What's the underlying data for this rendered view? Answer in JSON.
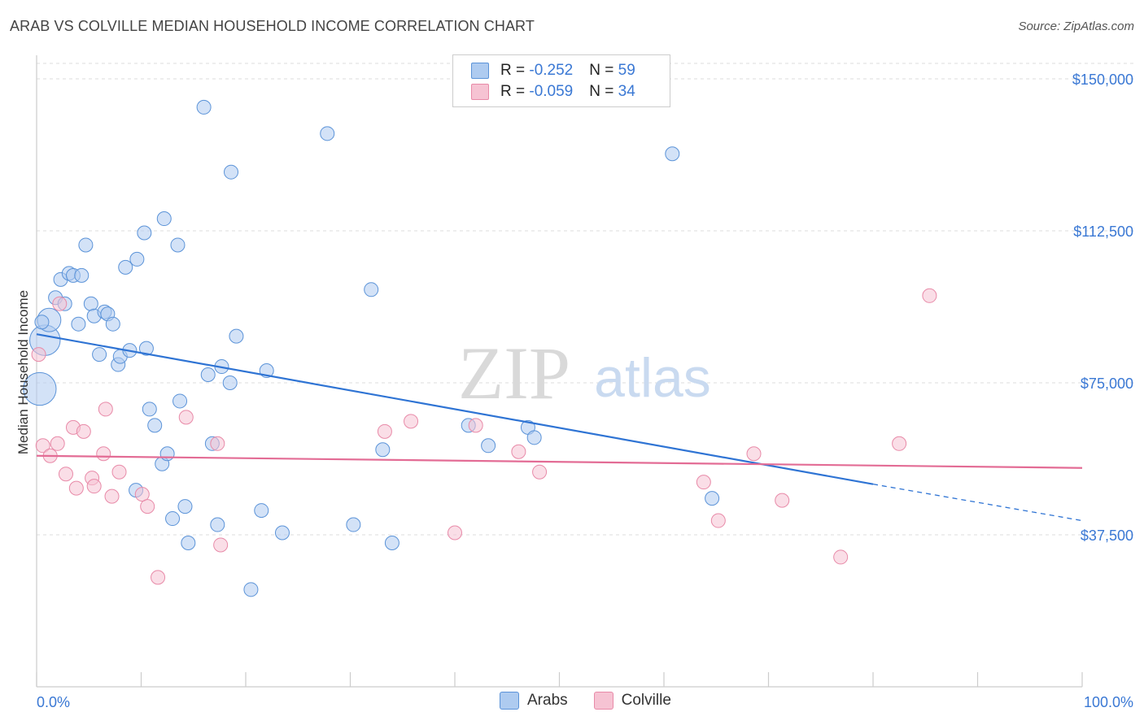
{
  "title": "ARAB VS COLVILLE MEDIAN HOUSEHOLD INCOME CORRELATION CHART",
  "source": "Source: ZipAtlas.com",
  "watermark": {
    "zip": "ZIP",
    "atlas": "atlas"
  },
  "colors": {
    "arabs_fill": "#aecbf0",
    "arabs_stroke": "#5b93d8",
    "arabs_line": "#2f74d4",
    "colville_fill": "#f6c3d3",
    "colville_stroke": "#e88aa8",
    "colville_line": "#e36c95",
    "tick_text": "#3a78d4",
    "grid": "#dddddd"
  },
  "legend": {
    "rows": [
      {
        "r_label": "R = ",
        "r_value": "-0.252",
        "n_label": "N = ",
        "n_value": "59"
      },
      {
        "r_label": "R = ",
        "r_value": "-0.059",
        "n_label": "N = ",
        "n_value": "34"
      }
    ]
  },
  "bottom_legend": {
    "arabs": "Arabs",
    "colville": "Colville"
  },
  "chart_data": {
    "type": "scatter",
    "xlabel": "",
    "ylabel": "Median Household Income",
    "xlim": [
      0,
      100
    ],
    "ylim": [
      0,
      155000
    ],
    "y_ticks": [
      {
        "value": 37500,
        "label": "$37,500"
      },
      {
        "value": 75000,
        "label": "$75,000"
      },
      {
        "value": 112500,
        "label": "$112,500"
      },
      {
        "value": 150000,
        "label": "$150,000"
      }
    ],
    "x_tick_labels": [
      {
        "value": 0,
        "label": "0.0%"
      },
      {
        "value": 100,
        "label": "100.0%"
      }
    ],
    "grid": true,
    "series": [
      {
        "name": "Arabs",
        "points": [
          [
            0.3,
            73500,
            28
          ],
          [
            0.8,
            85500,
            26
          ],
          [
            1.2,
            90500,
            20
          ],
          [
            1.8,
            96000,
            11
          ],
          [
            2.3,
            100500,
            11
          ],
          [
            2.7,
            94500,
            11
          ],
          [
            3.1,
            102000,
            11
          ],
          [
            3.5,
            101500,
            11
          ],
          [
            4.3,
            101500,
            11
          ],
          [
            4.0,
            89500,
            11
          ],
          [
            4.7,
            109000,
            11
          ],
          [
            5.2,
            94500,
            11
          ],
          [
            5.5,
            91500,
            11
          ],
          [
            6.0,
            82000,
            11
          ],
          [
            6.5,
            92500,
            11
          ],
          [
            6.8,
            92000,
            11
          ],
          [
            7.3,
            89500,
            11
          ],
          [
            7.8,
            79500,
            11
          ],
          [
            8.0,
            81500,
            11
          ],
          [
            8.5,
            103500,
            11
          ],
          [
            8.9,
            83000,
            11
          ],
          [
            9.6,
            105500,
            11
          ],
          [
            10.3,
            112000,
            11
          ],
          [
            10.5,
            83500,
            11
          ],
          [
            10.8,
            68500,
            11
          ],
          [
            11.3,
            64500,
            11
          ],
          [
            12.0,
            55000,
            11
          ],
          [
            12.2,
            115500,
            11
          ],
          [
            12.5,
            57500,
            11
          ],
          [
            13.0,
            41500,
            11
          ],
          [
            13.5,
            109000,
            11
          ],
          [
            13.7,
            70500,
            11
          ],
          [
            14.2,
            44500,
            11
          ],
          [
            14.5,
            35500,
            11
          ],
          [
            9.5,
            48500,
            11
          ],
          [
            16.0,
            143000,
            11
          ],
          [
            16.4,
            77000,
            11
          ],
          [
            16.8,
            60000,
            11
          ],
          [
            17.3,
            40000,
            11
          ],
          [
            17.7,
            79000,
            11
          ],
          [
            18.6,
            127000,
            11
          ],
          [
            18.5,
            75000,
            11
          ],
          [
            19.1,
            86500,
            11
          ],
          [
            20.5,
            24000,
            11
          ],
          [
            21.5,
            43500,
            11
          ],
          [
            22.0,
            78000,
            11
          ],
          [
            23.5,
            38000,
            11
          ],
          [
            27.8,
            136500,
            11
          ],
          [
            30.3,
            40000,
            11
          ],
          [
            32.0,
            98000,
            11
          ],
          [
            33.1,
            58500,
            11
          ],
          [
            34.0,
            35500,
            11
          ],
          [
            41.3,
            64500,
            11
          ],
          [
            43.2,
            59500,
            11
          ],
          [
            47.0,
            64000,
            11
          ],
          [
            47.6,
            61500,
            11
          ],
          [
            60.8,
            131500,
            11
          ],
          [
            64.6,
            46500,
            11
          ],
          [
            0.5,
            90000,
            11
          ]
        ]
      },
      {
        "name": "Colville",
        "points": [
          [
            0.2,
            82000,
            11
          ],
          [
            0.6,
            59500,
            11
          ],
          [
            1.3,
            57000,
            11
          ],
          [
            2.0,
            60000,
            11
          ],
          [
            2.2,
            94500,
            11
          ],
          [
            2.8,
            52500,
            11
          ],
          [
            3.5,
            64000,
            11
          ],
          [
            3.8,
            49000,
            11
          ],
          [
            4.5,
            63000,
            11
          ],
          [
            5.3,
            51500,
            11
          ],
          [
            5.5,
            49500,
            11
          ],
          [
            6.4,
            57500,
            11
          ],
          [
            6.6,
            68500,
            11
          ],
          [
            7.2,
            47000,
            11
          ],
          [
            7.9,
            53000,
            11
          ],
          [
            10.1,
            47500,
            11
          ],
          [
            10.6,
            44500,
            11
          ],
          [
            11.6,
            27000,
            11
          ],
          [
            14.3,
            66500,
            11
          ],
          [
            17.3,
            60000,
            11
          ],
          [
            17.6,
            35000,
            11
          ],
          [
            33.3,
            63000,
            11
          ],
          [
            35.8,
            65500,
            11
          ],
          [
            40.0,
            38000,
            11
          ],
          [
            42.0,
            64500,
            11
          ],
          [
            46.1,
            58000,
            11
          ],
          [
            48.1,
            53000,
            11
          ],
          [
            63.8,
            50500,
            11
          ],
          [
            65.2,
            41000,
            11
          ],
          [
            68.6,
            57500,
            11
          ],
          [
            71.3,
            46000,
            11
          ],
          [
            76.9,
            32000,
            11
          ],
          [
            82.5,
            60000,
            11
          ],
          [
            85.4,
            96500,
            11
          ]
        ]
      }
    ],
    "trendlines": [
      {
        "series": "Arabs",
        "from": [
          0,
          87000
        ],
        "to": [
          80,
          50000
        ],
        "dashed_to": [
          100,
          41000
        ]
      },
      {
        "series": "Colville",
        "from": [
          0,
          57000
        ],
        "to": [
          100,
          54000
        ]
      }
    ]
  }
}
